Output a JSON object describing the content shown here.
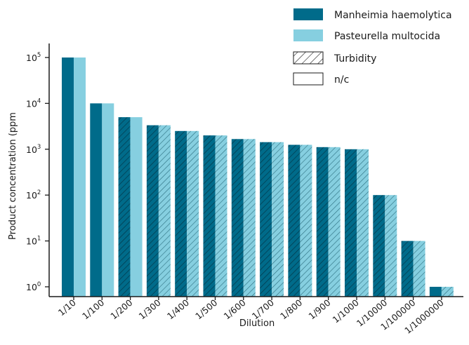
{
  "chart_data": {
    "type": "bar",
    "yscale": "log",
    "ylim": [
      1,
      100000
    ],
    "ytick_labels": [
      {
        "base": "10",
        "exp": "0"
      },
      {
        "base": "10",
        "exp": "1"
      },
      {
        "base": "10",
        "exp": "2"
      },
      {
        "base": "10",
        "exp": "3"
      },
      {
        "base": "10",
        "exp": "4"
      },
      {
        "base": "10",
        "exp": "5"
      }
    ],
    "xlabel": "Dilution",
    "ylabel": "Product concentration (ppm",
    "categories": [
      "1/10",
      "1/100",
      "1/200",
      "1/300",
      "1/400",
      "1/500",
      "1/600",
      "1/700",
      "1/800",
      "1/900",
      "1/1000",
      "1/10000",
      "1/100000",
      "1/1000000"
    ],
    "series": [
      {
        "name": "Manheimia haemolytica",
        "color": "#006b8a",
        "values": [
          100000,
          10000,
          5000,
          3333,
          2500,
          2000,
          1667,
          1429,
          1250,
          1111,
          1000,
          100,
          10,
          1
        ],
        "fill": [
          "solid",
          "solid",
          "turbidity",
          "turbidity",
          "turbidity",
          "turbidity",
          "turbidity",
          "turbidity",
          "turbidity",
          "turbidity",
          "turbidity",
          "turbidity",
          "turbidity",
          "solid"
        ]
      },
      {
        "name": "Pasteurella multocida",
        "color": "#86cfe0",
        "values": [
          100000,
          10000,
          5000,
          3333,
          2500,
          2000,
          1667,
          1429,
          1250,
          1111,
          1000,
          100,
          10,
          1
        ],
        "fill": [
          "solid",
          "solid",
          "solid",
          "turbidity",
          "turbidity",
          "turbidity",
          "turbidity",
          "turbidity",
          "turbidity",
          "turbidity",
          "turbidity",
          "turbidity",
          "turbidity",
          "turbidity"
        ]
      }
    ],
    "legend": {
      "position": "top-right",
      "items": [
        {
          "label": "Manheimia haemolytica",
          "style": "solid-dark"
        },
        {
          "label": "Pasteurella multocida",
          "style": "solid-light"
        },
        {
          "label": "Turbidity",
          "style": "hatched"
        },
        {
          "label": "n/c",
          "style": "empty"
        }
      ]
    },
    "grid": false
  }
}
